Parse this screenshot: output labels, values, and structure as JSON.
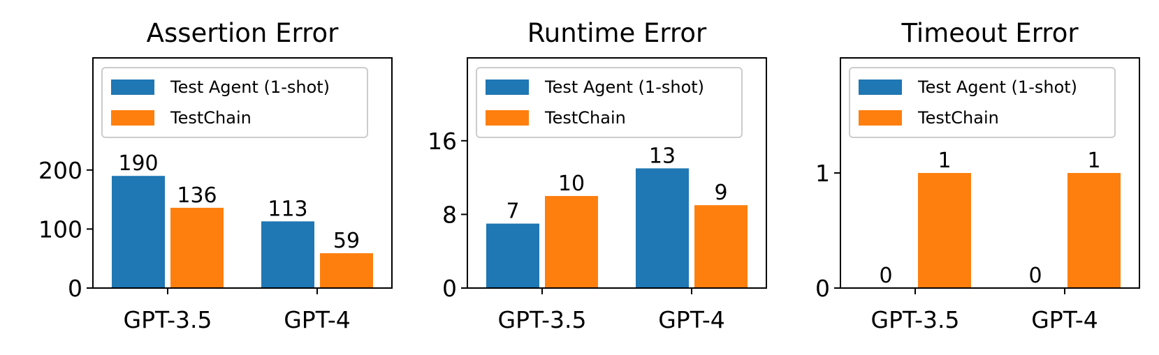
{
  "colors": {
    "series_0": "#1f77b4",
    "series_1": "#ff7f0e"
  },
  "chart_data": [
    {
      "type": "bar",
      "title": "Assertion Error",
      "categories": [
        "GPT-3.5",
        "GPT-4"
      ],
      "series": [
        {
          "name": "Test Agent (1-shot)",
          "values": [
            190,
            113
          ]
        },
        {
          "name": "TestChain",
          "values": [
            136,
            59
          ]
        }
      ],
      "ylim": [
        0,
        390
      ],
      "yticks": [
        0,
        100,
        200
      ],
      "legend": "top-left",
      "grid": false
    },
    {
      "type": "bar",
      "title": "Runtime Error",
      "categories": [
        "GPT-3.5",
        "GPT-4"
      ],
      "series": [
        {
          "name": "Test Agent (1-shot)",
          "values": [
            7,
            13
          ]
        },
        {
          "name": "TestChain",
          "values": [
            10,
            9
          ]
        }
      ],
      "ylim": [
        0,
        25
      ],
      "yticks": [
        0,
        8,
        16
      ],
      "legend": "top-left",
      "grid": false
    },
    {
      "type": "bar",
      "title": "Timeout Error",
      "categories": [
        "GPT-3.5",
        "GPT-4"
      ],
      "series": [
        {
          "name": "Test Agent (1-shot)",
          "values": [
            0,
            0
          ]
        },
        {
          "name": "TestChain",
          "values": [
            1,
            1
          ]
        }
      ],
      "ylim": [
        0,
        2
      ],
      "yticks": [
        0,
        1
      ],
      "legend": "top-left",
      "grid": false
    }
  ]
}
